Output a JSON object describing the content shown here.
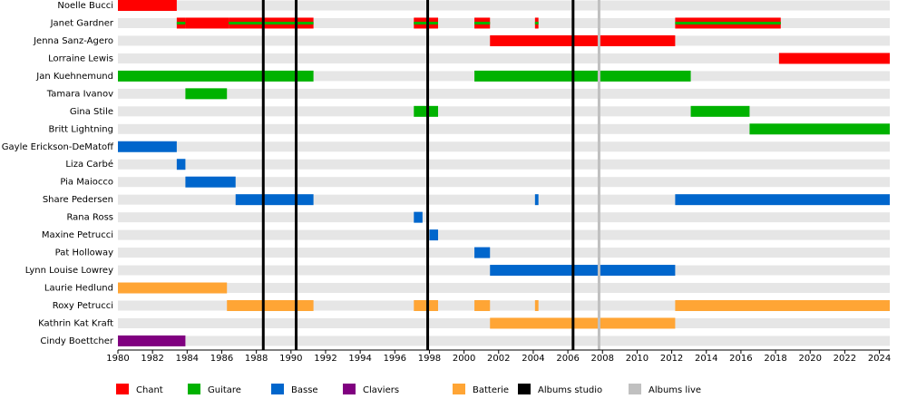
{
  "chart_data": {
    "type": "timeline",
    "xlim": [
      1980,
      2024.6
    ],
    "xticks": [
      1980,
      1982,
      1984,
      1986,
      1988,
      1990,
      1992,
      1994,
      1996,
      1998,
      2000,
      2002,
      2004,
      2006,
      2008,
      2010,
      2012,
      2014,
      2016,
      2018,
      2020,
      2022,
      2024
    ],
    "legend": [
      {
        "name": "Chant",
        "color": "#ff0000"
      },
      {
        "name": "Guitare",
        "color": "#00b200"
      },
      {
        "name": "Basse",
        "color": "#0066cc"
      },
      {
        "name": "Claviers",
        "color": "#800080"
      },
      {
        "name": "Batterie",
        "color": "#ffa535"
      },
      {
        "name": "Albums studio",
        "color": "#000000"
      },
      {
        "name": "Albums live",
        "color": "#c0c0c0"
      }
    ],
    "studio_albums": [
      1988.4,
      1990.3,
      1997.9,
      2006.3
    ],
    "live_albums": [
      2007.8
    ],
    "members": [
      {
        "name": "Noelle Bucci",
        "segments": [
          {
            "start": 1980,
            "end": 1983.4,
            "role": 0
          }
        ]
      },
      {
        "name": "Janet Gardner",
        "segments": [
          {
            "start": 1983.4,
            "end": 1983.9,
            "role": 0,
            "also": 1
          },
          {
            "start": 1983.9,
            "end": 1986.4,
            "role": 0
          },
          {
            "start": 1986.4,
            "end": 1991.3,
            "role": 0,
            "also": 1
          },
          {
            "start": 1997.1,
            "end": 1998.5,
            "role": 0,
            "also": 1
          },
          {
            "start": 2000.6,
            "end": 2001.5,
            "role": 0,
            "also": 1
          },
          {
            "start": 2004.1,
            "end": 2004.3,
            "role": 0,
            "also": 1
          },
          {
            "start": 2012.2,
            "end": 2018.3,
            "role": 0,
            "also": 1
          }
        ]
      },
      {
        "name": "Jenna Sanz-Agero",
        "segments": [
          {
            "start": 2001.5,
            "end": 2012.2,
            "role": 0
          }
        ]
      },
      {
        "name": "Lorraine Lewis",
        "segments": [
          {
            "start": 2018.2,
            "end": 2024.6,
            "role": 0
          }
        ]
      },
      {
        "name": "Jan Kuehnemund",
        "segments": [
          {
            "start": 1980,
            "end": 1991.3,
            "role": 1
          },
          {
            "start": 2000.6,
            "end": 2013.1,
            "role": 1
          }
        ]
      },
      {
        "name": "Tamara Ivanov",
        "segments": [
          {
            "start": 1983.9,
            "end": 1986.3,
            "role": 1
          }
        ]
      },
      {
        "name": "Gina Stile",
        "segments": [
          {
            "start": 1997.1,
            "end": 1998.5,
            "role": 1
          },
          {
            "start": 2013.1,
            "end": 2016.5,
            "role": 1
          }
        ]
      },
      {
        "name": "Britt Lightning",
        "segments": [
          {
            "start": 2016.5,
            "end": 2024.6,
            "role": 1
          }
        ]
      },
      {
        "name": "Gayle Erickson-DeMatoff",
        "segments": [
          {
            "start": 1980,
            "end": 1983.4,
            "role": 2
          }
        ]
      },
      {
        "name": "Liza Carbé",
        "segments": [
          {
            "start": 1983.4,
            "end": 1983.9,
            "role": 2
          }
        ]
      },
      {
        "name": "Pia Maiocco",
        "segments": [
          {
            "start": 1983.9,
            "end": 1986.8,
            "role": 2
          }
        ]
      },
      {
        "name": "Share Pedersen",
        "segments": [
          {
            "start": 1986.8,
            "end": 1991.3,
            "role": 2
          },
          {
            "start": 2004.1,
            "end": 2004.3,
            "role": 2
          },
          {
            "start": 2012.2,
            "end": 2024.6,
            "role": 2
          }
        ]
      },
      {
        "name": "Rana Ross",
        "segments": [
          {
            "start": 1997.1,
            "end": 1997.6,
            "role": 2
          }
        ]
      },
      {
        "name": "Maxine Petrucci",
        "segments": [
          {
            "start": 1998.0,
            "end": 1998.5,
            "role": 2
          }
        ]
      },
      {
        "name": "Pat Holloway",
        "segments": [
          {
            "start": 2000.6,
            "end": 2001.5,
            "role": 2
          }
        ]
      },
      {
        "name": "Lynn Louise Lowrey",
        "segments": [
          {
            "start": 2001.5,
            "end": 2012.2,
            "role": 2
          }
        ]
      },
      {
        "name": "Laurie Hedlund",
        "segments": [
          {
            "start": 1980,
            "end": 1986.3,
            "role": 4
          }
        ]
      },
      {
        "name": "Roxy Petrucci",
        "segments": [
          {
            "start": 1986.3,
            "end": 1991.3,
            "role": 4
          },
          {
            "start": 1997.1,
            "end": 1998.5,
            "role": 4
          },
          {
            "start": 2000.6,
            "end": 2001.5,
            "role": 4
          },
          {
            "start": 2004.1,
            "end": 2004.3,
            "role": 4
          },
          {
            "start": 2012.2,
            "end": 2024.6,
            "role": 4
          }
        ]
      },
      {
        "name": "Kathrin Kat Kraft",
        "segments": [
          {
            "start": 2001.5,
            "end": 2012.2,
            "role": 4
          }
        ]
      },
      {
        "name": "Cindy Boettcher",
        "segments": [
          {
            "start": 1980,
            "end": 1983.9,
            "role": 3
          }
        ]
      }
    ]
  }
}
